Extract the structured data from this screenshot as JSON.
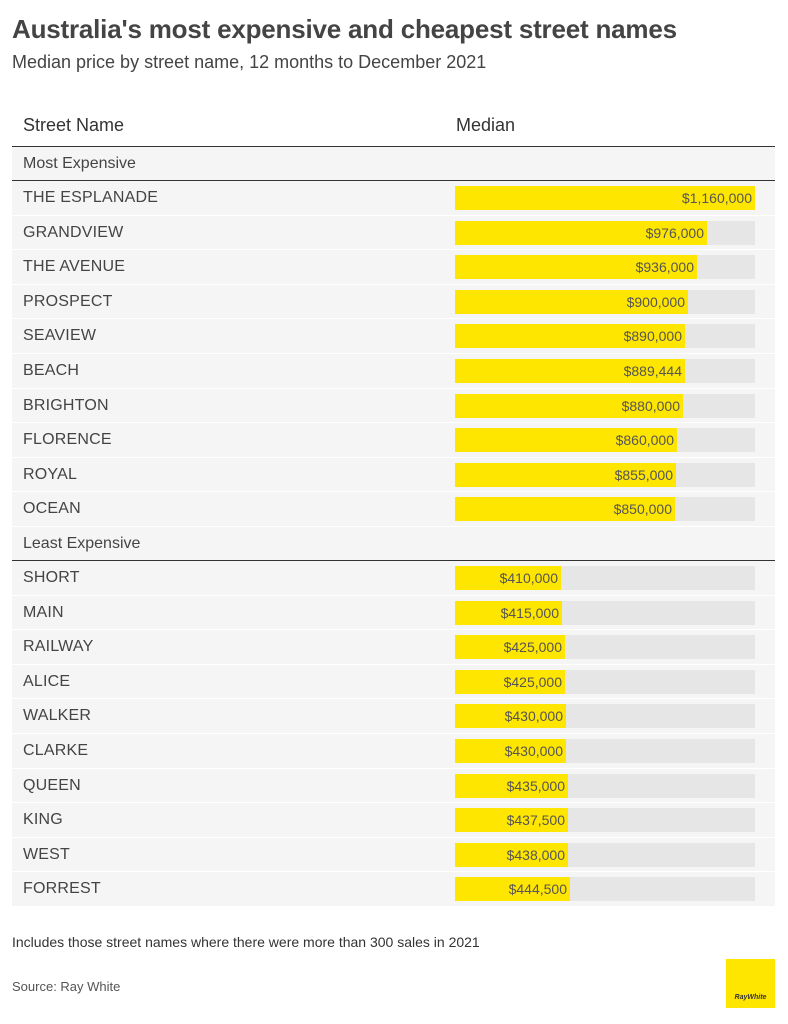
{
  "header": {
    "title": "Australia's most expensive and cheapest street names",
    "subtitle": "Median price by street name, 12 months to December 2021"
  },
  "table": {
    "col_street": "Street Name",
    "col_median": "Median"
  },
  "colors": {
    "bar": "#ffe600",
    "track": "#e6e6e6",
    "row_background": "#f5f5f5"
  },
  "chart_data": {
    "type": "bar",
    "orientation": "horizontal",
    "xlim": [
      0,
      1160000
    ],
    "groups": [
      {
        "label": "Most Expensive",
        "rows": [
          {
            "name": "THE ESPLANADE",
            "value": 1160000,
            "label": "$1,160,000"
          },
          {
            "name": "GRANDVIEW",
            "value": 976000,
            "label": "$976,000"
          },
          {
            "name": "THE AVENUE",
            "value": 936000,
            "label": "$936,000"
          },
          {
            "name": "PROSPECT",
            "value": 900000,
            "label": "$900,000"
          },
          {
            "name": "SEAVIEW",
            "value": 890000,
            "label": "$890,000"
          },
          {
            "name": "BEACH",
            "value": 889444,
            "label": "$889,444"
          },
          {
            "name": "BRIGHTON",
            "value": 880000,
            "label": "$880,000"
          },
          {
            "name": "FLORENCE",
            "value": 860000,
            "label": "$860,000"
          },
          {
            "name": "ROYAL",
            "value": 855000,
            "label": "$855,000"
          },
          {
            "name": "OCEAN",
            "value": 850000,
            "label": "$850,000"
          }
        ]
      },
      {
        "label": "Least Expensive",
        "rows": [
          {
            "name": "SHORT",
            "value": 410000,
            "label": "$410,000"
          },
          {
            "name": "MAIN",
            "value": 415000,
            "label": "$415,000"
          },
          {
            "name": "RAILWAY",
            "value": 425000,
            "label": "$425,000"
          },
          {
            "name": "ALICE",
            "value": 425000,
            "label": "$425,000"
          },
          {
            "name": "WALKER",
            "value": 430000,
            "label": "$430,000"
          },
          {
            "name": "CLARKE",
            "value": 430000,
            "label": "$430,000"
          },
          {
            "name": "QUEEN",
            "value": 435000,
            "label": "$435,000"
          },
          {
            "name": "KING",
            "value": 437500,
            "label": "$437,500"
          },
          {
            "name": "WEST",
            "value": 438000,
            "label": "$438,000"
          },
          {
            "name": "FORREST",
            "value": 444500,
            "label": "$444,500"
          }
        ]
      }
    ]
  },
  "footer": {
    "note": "Includes those street names where there were more than 300 sales in 2021",
    "source": "Source: Ray White",
    "logo_text": "RayWhite"
  }
}
